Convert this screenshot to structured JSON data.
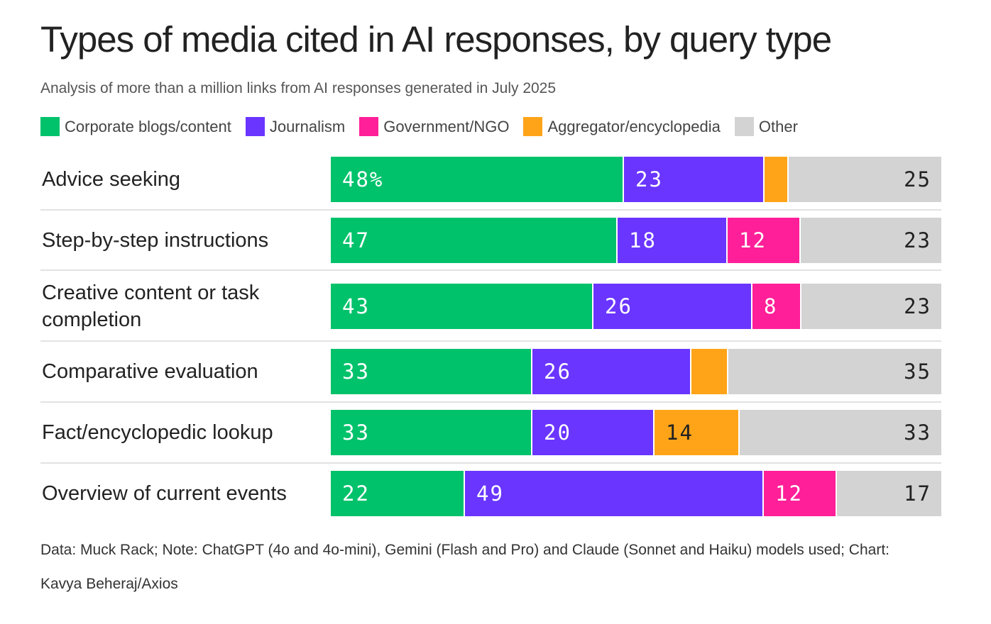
{
  "colors": {
    "corporate": "#00c26b",
    "journalism": "#6a35ff",
    "government": "#ff1f98",
    "aggregator": "#ffa419",
    "other": "#d3d3d3"
  },
  "legend": [
    {
      "label": "Corporate blogs/content",
      "color": "#00c26b"
    },
    {
      "label": "Journalism",
      "color": "#6a35ff"
    },
    {
      "label": "Government/NGO",
      "color": "#ff1f98"
    },
    {
      "label": "Aggregator/encyclopedia",
      "color": "#ffa419"
    },
    {
      "label": "Other",
      "color": "#d3d3d3"
    }
  ],
  "footer": "Data: Muck Rack; Note: ChatGPT (4o and 4o-mini), Gemini (Flash and Pro) and Claude (Sonnet and Haiku) models used; Chart: Kavya Beheraj/Axios",
  "chart_data": {
    "type": "bar",
    "orientation": "horizontal-stacked-100",
    "title": "Types of media cited in AI responses, by query type",
    "subtitle": "Analysis of more than a million links from AI responses generated in July 2025",
    "xlabel": "",
    "ylabel": "",
    "ylim": [
      0,
      100
    ],
    "categories": [
      "Advice seeking",
      "Step-by-step instructions",
      "Creative content or task completion",
      "Comparative evaluation",
      "Fact/encyclopedic lookup",
      "Overview of current events"
    ],
    "series": [
      {
        "name": "Corporate blogs/content",
        "key": "corporate",
        "values": [
          48,
          47,
          43,
          33,
          33,
          22
        ],
        "labels": [
          "48%",
          "47",
          "43",
          "33",
          "33",
          "22"
        ],
        "text_color": "#ffffff"
      },
      {
        "name": "Journalism",
        "key": "journalism",
        "values": [
          23,
          18,
          26,
          26,
          20,
          49
        ],
        "labels": [
          "23",
          "18",
          "26",
          "26",
          "20",
          "49"
        ],
        "text_color": "#ffffff"
      },
      {
        "name": "Government/NGO",
        "key": "government",
        "values": [
          0,
          12,
          8,
          0,
          0,
          12
        ],
        "labels": [
          "",
          "12",
          "8",
          "",
          "",
          "12"
        ],
        "text_color": "#ffffff"
      },
      {
        "name": "Aggregator/encyclopedia",
        "key": "aggregator",
        "values": [
          4,
          0,
          0,
          6,
          14,
          0
        ],
        "labels": [
          "",
          "",
          "",
          "",
          "14",
          ""
        ],
        "text_color": "#222222"
      },
      {
        "name": "Other",
        "key": "other",
        "values": [
          25,
          23,
          23,
          35,
          33,
          17
        ],
        "labels": [
          "25",
          "23",
          "23",
          "35",
          "33",
          "17"
        ],
        "text_color": "#222222"
      }
    ]
  }
}
